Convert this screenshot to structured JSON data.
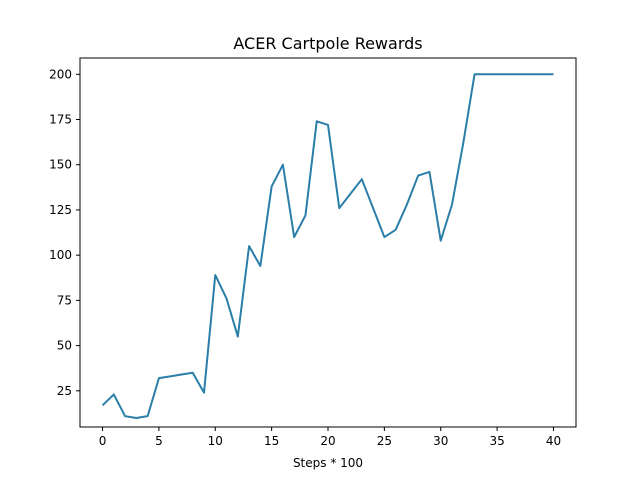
{
  "chart_data": {
    "type": "line",
    "title": "ACER Cartpole Rewards",
    "xlabel": "Steps * 100",
    "ylabel": "",
    "xlim": [
      -2,
      42
    ],
    "ylim": [
      5,
      209
    ],
    "xticks": [
      0,
      5,
      10,
      15,
      20,
      25,
      30,
      35,
      40
    ],
    "yticks": [
      25,
      50,
      75,
      100,
      125,
      150,
      175,
      200
    ],
    "grid": false,
    "legend": "none",
    "line_color": "#2a7ea8",
    "series": [
      {
        "x": [
          0,
          1,
          2,
          3,
          4,
          5,
          6,
          7,
          8,
          9,
          10,
          11,
          12,
          13,
          14,
          15,
          16,
          17,
          18,
          19,
          20,
          21,
          22,
          23,
          24,
          25,
          26,
          27,
          28,
          29,
          30,
          31,
          32,
          33,
          34,
          35,
          36,
          37,
          38,
          39,
          40
        ],
        "values": [
          17,
          23,
          11,
          10,
          11,
          32,
          33,
          34,
          35,
          24,
          89,
          76,
          55,
          105,
          94,
          138,
          150,
          110,
          122,
          174,
          172,
          126,
          134,
          142,
          126,
          110,
          114,
          128,
          144,
          146,
          108,
          128,
          162,
          200,
          200,
          200,
          200,
          200,
          200,
          200,
          200
        ]
      }
    ]
  }
}
